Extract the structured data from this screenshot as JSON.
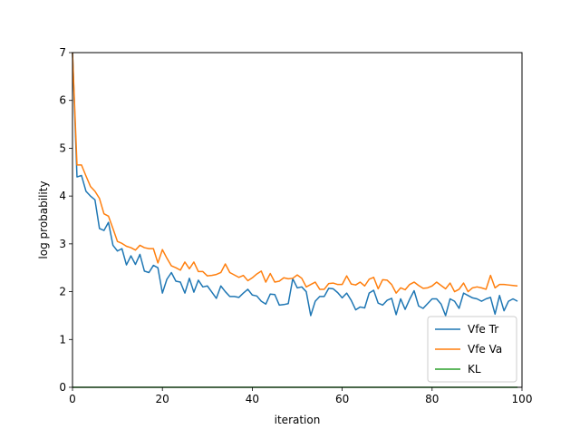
{
  "chart_data": {
    "type": "line",
    "title": "",
    "xlabel": "iteration",
    "ylabel": "log probability",
    "xlim": [
      0,
      100
    ],
    "ylim": [
      0,
      7
    ],
    "xticks": [
      0,
      20,
      40,
      60,
      80,
      100
    ],
    "yticks": [
      0,
      1,
      2,
      3,
      4,
      5,
      6,
      7
    ],
    "grid": false,
    "legend_position": "lower-right",
    "x": [
      0,
      1,
      2,
      3,
      4,
      5,
      6,
      7,
      8,
      9,
      10,
      11,
      12,
      13,
      14,
      15,
      16,
      17,
      18,
      19,
      20,
      21,
      22,
      23,
      24,
      25,
      26,
      27,
      28,
      29,
      30,
      31,
      32,
      33,
      34,
      35,
      36,
      37,
      38,
      39,
      40,
      41,
      42,
      43,
      44,
      45,
      46,
      47,
      48,
      49,
      50,
      51,
      52,
      53,
      54,
      55,
      56,
      57,
      58,
      59,
      60,
      61,
      62,
      63,
      64,
      65,
      66,
      67,
      68,
      69,
      70,
      71,
      72,
      73,
      74,
      75,
      76,
      77,
      78,
      79,
      80,
      81,
      82,
      83,
      84,
      85,
      86,
      87,
      88,
      89,
      90,
      91,
      92,
      93,
      94,
      95,
      96,
      97,
      98,
      99
    ],
    "series": [
      {
        "name": "Vfe Tr",
        "color": "#1f77b4",
        "values": [
          7.0,
          4.4,
          4.43,
          4.1,
          4.0,
          3.92,
          3.32,
          3.28,
          3.45,
          2.97,
          2.85,
          2.9,
          2.56,
          2.75,
          2.57,
          2.78,
          2.43,
          2.4,
          2.55,
          2.5,
          1.97,
          2.26,
          2.4,
          2.22,
          2.2,
          1.97,
          2.28,
          1.99,
          2.24,
          2.1,
          2.12,
          1.99,
          1.86,
          2.12,
          2.0,
          1.9,
          1.9,
          1.88,
          1.97,
          2.05,
          1.93,
          1.91,
          1.8,
          1.74,
          1.95,
          1.94,
          1.72,
          1.73,
          1.75,
          2.27,
          2.08,
          2.1,
          2.0,
          1.5,
          1.8,
          1.9,
          1.9,
          2.07,
          2.06,
          1.98,
          1.87,
          1.97,
          1.82,
          1.62,
          1.68,
          1.66,
          1.97,
          2.03,
          1.76,
          1.72,
          1.82,
          1.86,
          1.52,
          1.85,
          1.63,
          1.84,
          2.02,
          1.7,
          1.65,
          1.75,
          1.85,
          1.85,
          1.74,
          1.5,
          1.85,
          1.8,
          1.65,
          1.97,
          1.92,
          1.87,
          1.85,
          1.8,
          1.85,
          1.88,
          1.53,
          1.92,
          1.6,
          1.8,
          1.85,
          1.8
        ]
      },
      {
        "name": "Vfe Va",
        "color": "#ff7f0e",
        "values": [
          7.0,
          4.65,
          4.65,
          4.42,
          4.2,
          4.1,
          3.95,
          3.63,
          3.58,
          3.32,
          3.05,
          3.01,
          2.95,
          2.92,
          2.87,
          2.97,
          2.92,
          2.9,
          2.9,
          2.6,
          2.88,
          2.7,
          2.54,
          2.5,
          2.45,
          2.62,
          2.48,
          2.62,
          2.42,
          2.42,
          2.33,
          2.34,
          2.36,
          2.4,
          2.58,
          2.4,
          2.35,
          2.3,
          2.34,
          2.23,
          2.29,
          2.37,
          2.43,
          2.2,
          2.38,
          2.2,
          2.22,
          2.29,
          2.27,
          2.28,
          2.35,
          2.28,
          2.1,
          2.15,
          2.2,
          2.05,
          2.05,
          2.17,
          2.18,
          2.15,
          2.15,
          2.33,
          2.16,
          2.14,
          2.2,
          2.12,
          2.26,
          2.3,
          2.06,
          2.25,
          2.24,
          2.15,
          1.97,
          2.08,
          2.04,
          2.15,
          2.2,
          2.13,
          2.07,
          2.08,
          2.12,
          2.2,
          2.13,
          2.06,
          2.18,
          2.0,
          2.05,
          2.18,
          2.0,
          2.08,
          2.1,
          2.08,
          2.05,
          2.34,
          2.08,
          2.15,
          2.15,
          2.14,
          2.13,
          2.12
        ]
      },
      {
        "name": "KL",
        "color": "#2ca02c",
        "values": [
          0,
          0,
          0,
          0,
          0,
          0,
          0,
          0,
          0,
          0,
          0,
          0,
          0,
          0,
          0,
          0,
          0,
          0,
          0,
          0,
          0,
          0,
          0,
          0,
          0,
          0,
          0,
          0,
          0,
          0,
          0,
          0,
          0,
          0,
          0,
          0,
          0,
          0,
          0,
          0,
          0,
          0,
          0,
          0,
          0,
          0,
          0,
          0,
          0,
          0,
          0,
          0,
          0,
          0,
          0,
          0,
          0,
          0,
          0,
          0,
          0,
          0,
          0,
          0,
          0,
          0,
          0,
          0,
          0,
          0,
          0,
          0,
          0,
          0,
          0,
          0,
          0,
          0,
          0,
          0,
          0,
          0,
          0,
          0,
          0,
          0,
          0,
          0,
          0,
          0,
          0,
          0,
          0,
          0,
          0,
          0,
          0,
          0,
          0,
          0
        ]
      }
    ]
  }
}
